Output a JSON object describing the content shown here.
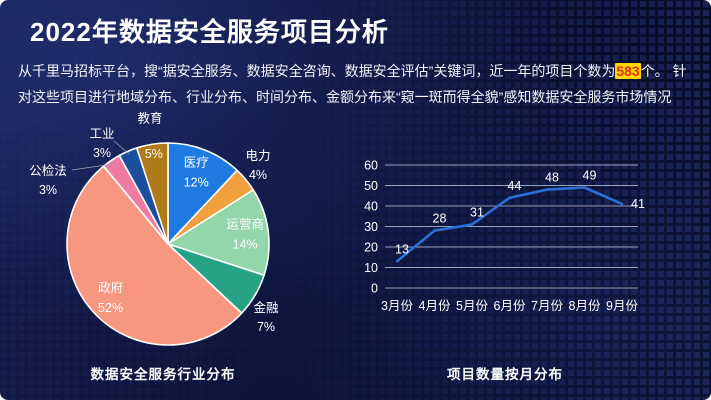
{
  "slide": {
    "title": "2022年数据安全服务项目分析",
    "intro": {
      "text_before": "从千里马招标平台，搜“据安全服务、数据安全咨询、数据安全评估”关键词，近一年的项目个数为",
      "highlight": "583",
      "text_after": "个。 针对这些项目进行地域分布、行业分布、时间分布、金额分布来“窥一斑而得全貌”感知数据安全服务市场情况"
    }
  },
  "colors": {
    "background": "#0a1030",
    "title_text": "#ffffff",
    "body_text": "#f2f4fa",
    "highlight_bg": "#ffd800",
    "highlight_text": "#e03000",
    "gridline": "#99a1b5",
    "pie_stroke": "#ffffff",
    "leader_line": "#9aa4b8"
  },
  "chart_data": [
    {
      "type": "pie",
      "title": "数据安全服务行业分布",
      "categories": [
        "医疗",
        "电力",
        "运营商",
        "金融",
        "政府",
        "公检法",
        "工业",
        "教育"
      ],
      "values": [
        12,
        4,
        14,
        7,
        52,
        3,
        3,
        5
      ],
      "unit": "%",
      "colors": [
        "#1e79e0",
        "#f2a03d",
        "#92d6a9",
        "#27a287",
        "#f8977f",
        "#ef7ba2",
        "#1c4e9c",
        "#af7a17"
      ],
      "start_angle": "top",
      "direction": "clockwise",
      "label_color": "#ffffff"
    },
    {
      "type": "line",
      "title": "项目数量按月分布",
      "categories": [
        "3月份",
        "4月份",
        "5月份",
        "6月份",
        "7月份",
        "8月份",
        "9月份"
      ],
      "values": [
        13,
        28,
        31,
        44,
        48,
        49,
        41
      ],
      "ylim": [
        0,
        60
      ],
      "yticks": [
        0,
        10,
        20,
        30,
        40,
        50,
        60
      ],
      "grid": true,
      "legend": "none",
      "line_color": "#2e6fd6",
      "label_color": "#ffffff"
    }
  ]
}
